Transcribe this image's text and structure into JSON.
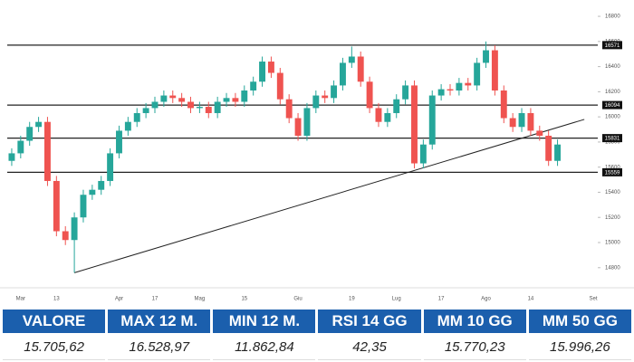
{
  "chart_data": {
    "type": "candlestick",
    "categories": [
      null,
      "Mar",
      null,
      null,
      null,
      "13",
      null,
      null,
      null,
      null,
      null,
      null,
      "Apr",
      null,
      null,
      null,
      "17",
      null,
      null,
      null,
      null,
      "Mag",
      null,
      null,
      null,
      null,
      "15",
      null,
      null,
      null,
      null,
      null,
      "Giu",
      null,
      null,
      null,
      null,
      null,
      "19",
      null,
      null,
      null,
      null,
      "Lug",
      null,
      null,
      null,
      null,
      "17",
      null,
      null,
      null,
      null,
      "Ago",
      null,
      null,
      null,
      null,
      "14",
      null,
      null,
      null,
      null,
      null,
      null,
      "Set"
    ],
    "open": [
      15650,
      15710,
      15810,
      15920,
      15960,
      15490,
      15090,
      15020,
      15200,
      15380,
      15420,
      15490,
      15710,
      15890,
      15960,
      16030,
      16070,
      16120,
      16170,
      16150,
      16120,
      16070,
      16080,
      16030,
      16120,
      16150,
      16120,
      16210,
      16280,
      16440,
      16350,
      16140,
      15990,
      15850,
      16070,
      16170,
      16150,
      16250,
      16430,
      16480,
      16280,
      16070,
      15960,
      16030,
      16140,
      16250,
      15630,
      15780,
      16170,
      16220,
      16210,
      16270,
      16250,
      16430,
      16530,
      16210,
      15990,
      15920,
      16030,
      15890,
      15850,
      15650,
      null,
      null,
      null,
      null
    ],
    "high": [
      15750,
      15850,
      15960,
      16000,
      16000,
      15530,
      15130,
      15240,
      15420,
      15460,
      15530,
      15750,
      15930,
      16000,
      16070,
      16110,
      16160,
      16210,
      16210,
      16190,
      16160,
      16120,
      16120,
      16160,
      16190,
      16190,
      16250,
      16320,
      16480,
      16480,
      16390,
      16180,
      16030,
      16110,
      16210,
      16210,
      16290,
      16470,
      16560,
      16520,
      16320,
      16110,
      16070,
      16180,
      16290,
      16290,
      15820,
      16210,
      16260,
      16260,
      16310,
      16310,
      16470,
      16600,
      16570,
      16250,
      16030,
      16070,
      16070,
      15930,
      15890,
      15820,
      null,
      null,
      null,
      null
    ],
    "low": [
      15610,
      15670,
      15770,
      15880,
      15450,
      15050,
      14980,
      14760,
      15160,
      15340,
      15380,
      15450,
      15670,
      15850,
      15920,
      15990,
      16030,
      16080,
      16110,
      16080,
      16030,
      16030,
      15990,
      15990,
      16080,
      16080,
      16080,
      16170,
      16240,
      16310,
      16100,
      15950,
      15810,
      15810,
      16030,
      16110,
      16110,
      16210,
      16390,
      16240,
      16030,
      15920,
      15920,
      15990,
      16100,
      15590,
      15590,
      15740,
      16130,
      16170,
      16170,
      16210,
      16210,
      16390,
      16170,
      15950,
      15880,
      15880,
      15850,
      15810,
      15610,
      15610,
      null,
      null,
      null,
      null
    ],
    "close": [
      15710,
      15810,
      15920,
      15960,
      15490,
      15090,
      15020,
      15200,
      15380,
      15420,
      15490,
      15710,
      15890,
      15960,
      16030,
      16070,
      16120,
      16170,
      16150,
      16120,
      16070,
      16080,
      16030,
      16120,
      16150,
      16120,
      16210,
      16280,
      16440,
      16350,
      16140,
      15990,
      15850,
      16070,
      16170,
      16150,
      16250,
      16430,
      16480,
      16280,
      16070,
      15960,
      16030,
      16140,
      16250,
      15630,
      15780,
      16170,
      16220,
      16210,
      16270,
      16250,
      16430,
      16530,
      16210,
      15990,
      15920,
      16030,
      15890,
      15850,
      15650,
      15780,
      null,
      null,
      null,
      null
    ],
    "up_color": "#26a69a",
    "down_color": "#ef5350",
    "levels": [
      16571,
      16094,
      15831,
      15559
    ],
    "trendline": {
      "x": [
        7,
        64
      ],
      "y": [
        14760,
        15980
      ]
    },
    "ylim": [
      14640,
      16930
    ],
    "yticks": [
      16800,
      16600,
      16400,
      16200,
      16000,
      15800,
      15600,
      15400,
      15200,
      15000,
      14800
    ]
  },
  "table": {
    "header": [
      "VALORE",
      "MAX 12 M.",
      "MIN 12 M.",
      "RSI 14 GG",
      "MM 10 GG",
      "MM 50 GG"
    ],
    "rows": [
      [
        "15.705,62",
        "16.528,97",
        "11.862,84",
        "42,35",
        "15.770,23",
        "15.996,26"
      ]
    ]
  }
}
